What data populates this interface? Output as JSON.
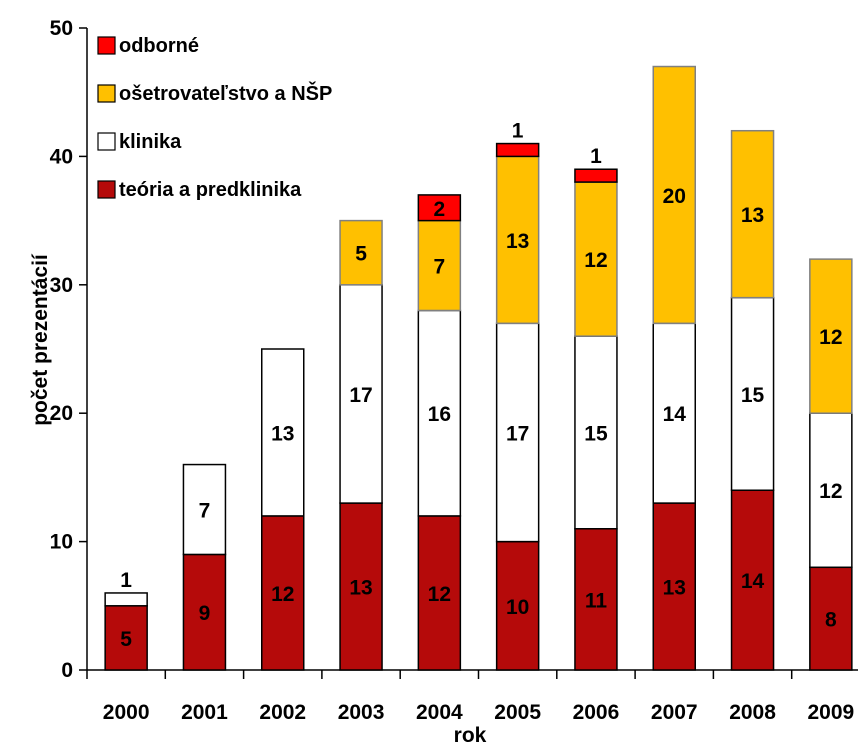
{
  "chart_data": {
    "type": "bar",
    "stacked": true,
    "xlabel": "rok",
    "ylabel": "počet prezentácií",
    "ylim": [
      0,
      50
    ],
    "yticks": [
      0,
      10,
      20,
      30,
      40,
      50
    ],
    "categories": [
      "2000",
      "2001",
      "2002",
      "2003",
      "2004",
      "2005",
      "2006",
      "2007",
      "2008",
      "2009"
    ],
    "legend_position": "top-left",
    "series": [
      {
        "name": "teória a predklinika",
        "color": "#b50a0a",
        "values": [
          5,
          9,
          12,
          13,
          12,
          10,
          11,
          13,
          14,
          8
        ]
      },
      {
        "name": "klinika",
        "color": "#ffffff",
        "values": [
          1,
          7,
          13,
          17,
          16,
          17,
          15,
          14,
          15,
          12
        ]
      },
      {
        "name": "ošetrovateľstvo a NŠP",
        "color": "#ffc000",
        "values": [
          0,
          0,
          0,
          5,
          7,
          13,
          12,
          20,
          13,
          12
        ]
      },
      {
        "name": "odborné",
        "color": "#ff0000",
        "values": [
          0,
          0,
          0,
          0,
          2,
          1,
          1,
          0,
          0,
          0
        ]
      }
    ],
    "legend_order": [
      3,
      2,
      1,
      0
    ]
  }
}
